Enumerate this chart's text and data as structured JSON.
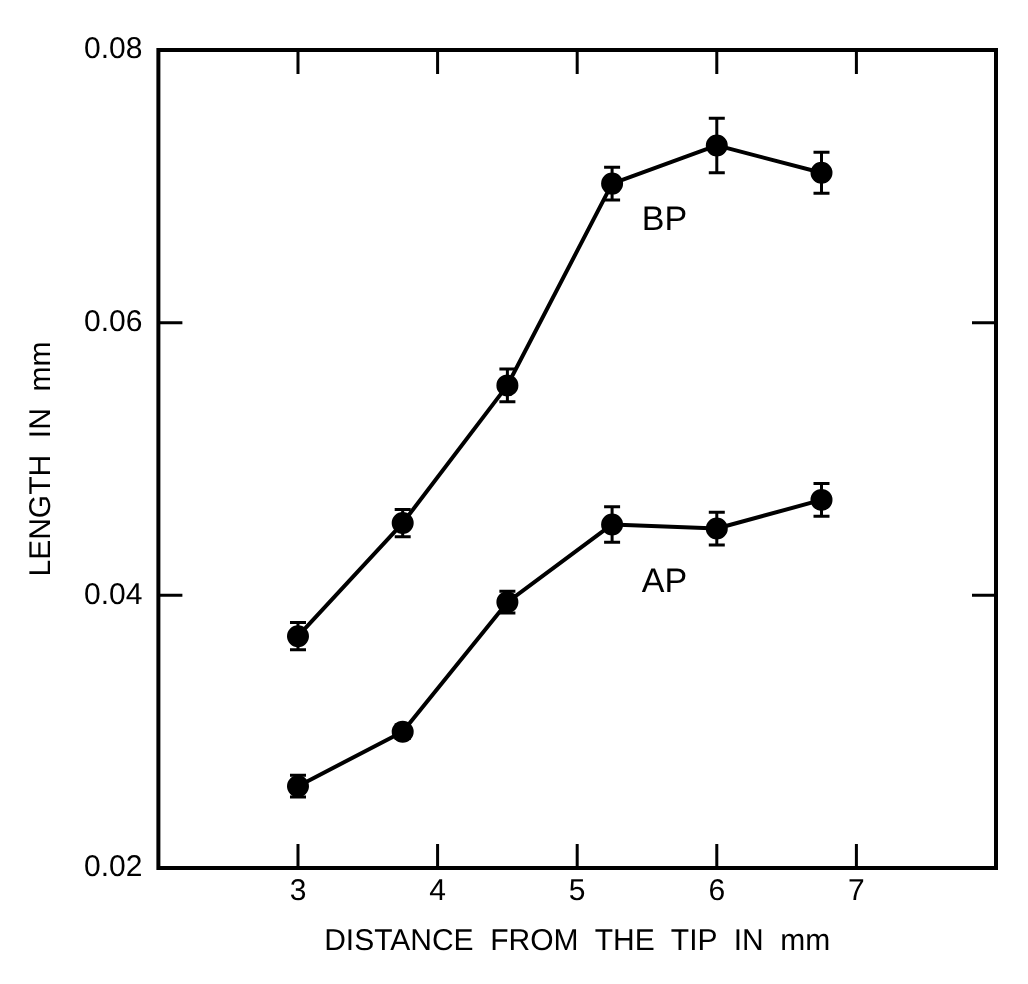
{
  "chart_data": {
    "type": "line",
    "xlabel": "DISTANCE  FROM  THE  TIP  IN  mm",
    "ylabel": "LENGTH  IN  mm",
    "x": [
      3,
      3.75,
      4.5,
      5.25,
      6,
      6.75
    ],
    "series": [
      {
        "name": "BP",
        "color": "#000000",
        "values": [
          0.037,
          0.0453,
          0.0554,
          0.0702,
          0.073,
          0.071
        ],
        "errors": [
          0.001,
          0.001,
          0.0012,
          0.0012,
          0.002,
          0.0015
        ]
      },
      {
        "name": "AP",
        "color": "#000000",
        "values": [
          0.026,
          0.03,
          0.0395,
          0.0452,
          0.0449,
          0.047
        ],
        "errors": [
          0.0008,
          0.0005,
          0.0008,
          0.0013,
          0.0012,
          0.0012
        ]
      }
    ],
    "xlim": [
      2,
      8
    ],
    "xticks": [
      3,
      4,
      5,
      6,
      7
    ],
    "ylim": [
      0.02,
      0.08
    ],
    "yticks": [
      0.02,
      0.04,
      0.06,
      0.08
    ],
    "grid": false,
    "legend": false,
    "marker": "circle",
    "line_style": "solid"
  }
}
